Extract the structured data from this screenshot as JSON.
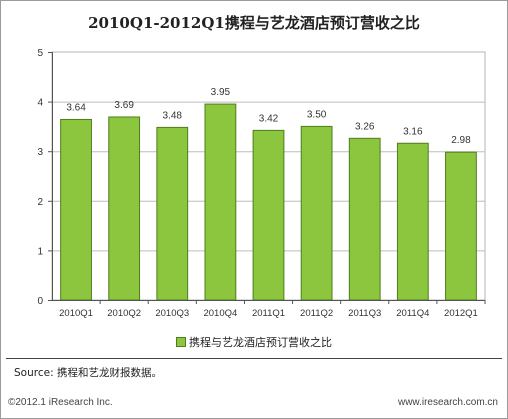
{
  "chart_data": {
    "type": "bar",
    "title": "2010Q1-2012Q1携程与艺龙酒店预订营收之比",
    "categories": [
      "2010Q1",
      "2010Q2",
      "2010Q3",
      "2010Q4",
      "2011Q1",
      "2011Q2",
      "2011Q3",
      "2011Q4",
      "2012Q1"
    ],
    "series": [
      {
        "name": "携程与艺龙酒店预订营收之比",
        "values": [
          3.64,
          3.69,
          3.48,
          3.95,
          3.42,
          3.5,
          3.26,
          3.16,
          2.98
        ],
        "labels": [
          "3.64",
          "3.69",
          "3.48",
          "3.95",
          "3.42",
          "3.50",
          "3.26",
          "3.16",
          "2.98"
        ]
      }
    ],
    "ylim": [
      0,
      5
    ],
    "yticks": [
      "0",
      "1",
      "2",
      "3",
      "4",
      "5"
    ],
    "grid": true,
    "legend_position": "bottom",
    "bar_color": "#8cc63f",
    "bar_edge_color": "#4f7d1c"
  },
  "footer": {
    "source": "Source: 携程和艺龙财报数据。",
    "copyright": "©2012.1 iResearch Inc.",
    "website": "www.iresearch.com.cn"
  }
}
